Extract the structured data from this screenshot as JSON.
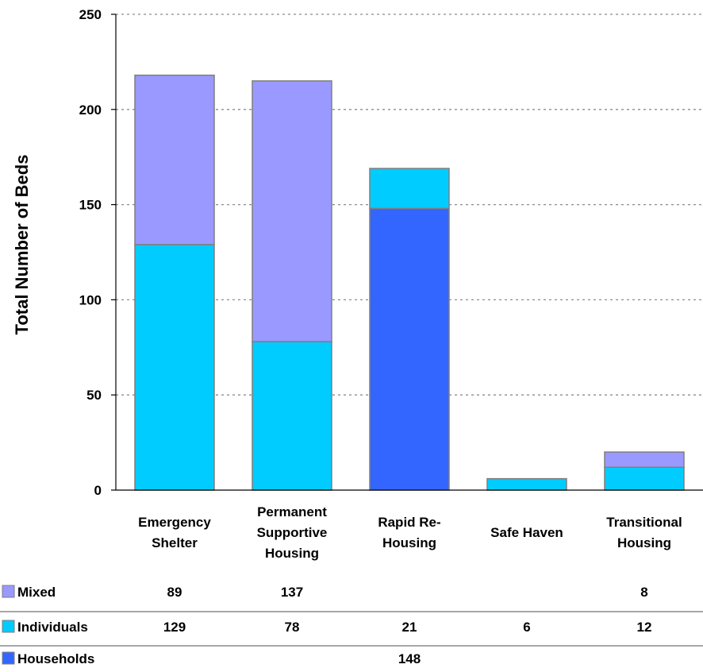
{
  "chart_data": {
    "type": "bar",
    "stacked": true,
    "title": "",
    "xlabel": "",
    "ylabel": "Total Number of Beds",
    "ylim": [
      0,
      250
    ],
    "yticks": [
      0,
      50,
      100,
      150,
      200,
      250
    ],
    "grid": true,
    "legend": "bottom-left data table",
    "categories": [
      [
        "Emergency",
        "Shelter"
      ],
      [
        "Permanent",
        "Supportive",
        "Housing"
      ],
      [
        "Rapid Re-",
        "Housing"
      ],
      [
        "Safe Haven"
      ],
      [
        "Transitional",
        "Housing"
      ]
    ],
    "series": [
      {
        "name": "Households",
        "color": "#3366ff",
        "values": [
          null,
          null,
          148,
          null,
          null
        ]
      },
      {
        "name": "Individuals",
        "color": "#00ccff",
        "values": [
          129,
          78,
          21,
          6,
          12
        ]
      },
      {
        "name": "Mixed",
        "color": "#9999ff",
        "values": [
          89,
          137,
          null,
          null,
          8
        ]
      }
    ],
    "table_order": [
      "Mixed",
      "Individuals",
      "Households"
    ]
  }
}
